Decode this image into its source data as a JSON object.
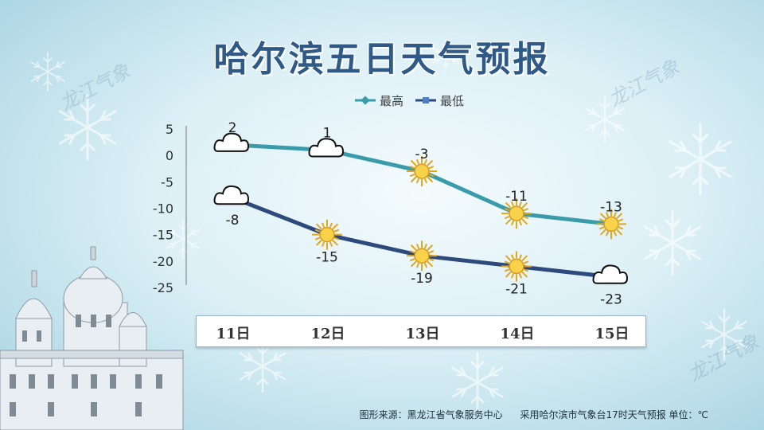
{
  "title": "哈尔滨五日天气预报",
  "watermark": "龙江气象",
  "footer": {
    "source": "图形来源：黑龙江省气象服务中心",
    "note": "采用哈尔滨市气象台17时天气预报 单位：℃"
  },
  "colors": {
    "high": "#3a9caa",
    "low": "#2e4a7c",
    "title": "#2f5a87"
  },
  "chart_data": {
    "type": "line",
    "categories": [
      "11日",
      "12日",
      "13日",
      "14日",
      "15日"
    ],
    "series": [
      {
        "name": "最高",
        "values": [
          2,
          1,
          -3,
          -11,
          -13
        ],
        "weather": [
          "cloudy",
          "cloudy",
          "sunny",
          "sunny",
          "sunny"
        ]
      },
      {
        "name": "最低",
        "values": [
          -8,
          -15,
          -19,
          -21,
          -23
        ],
        "weather": [
          "cloudy",
          "sunny",
          "sunny",
          "sunny",
          "cloudy"
        ]
      }
    ],
    "yticks": [
      5,
      0,
      -5,
      -10,
      -15,
      -20,
      -25
    ],
    "ylim": [
      -25,
      5
    ],
    "grid": false,
    "legend": "top"
  }
}
